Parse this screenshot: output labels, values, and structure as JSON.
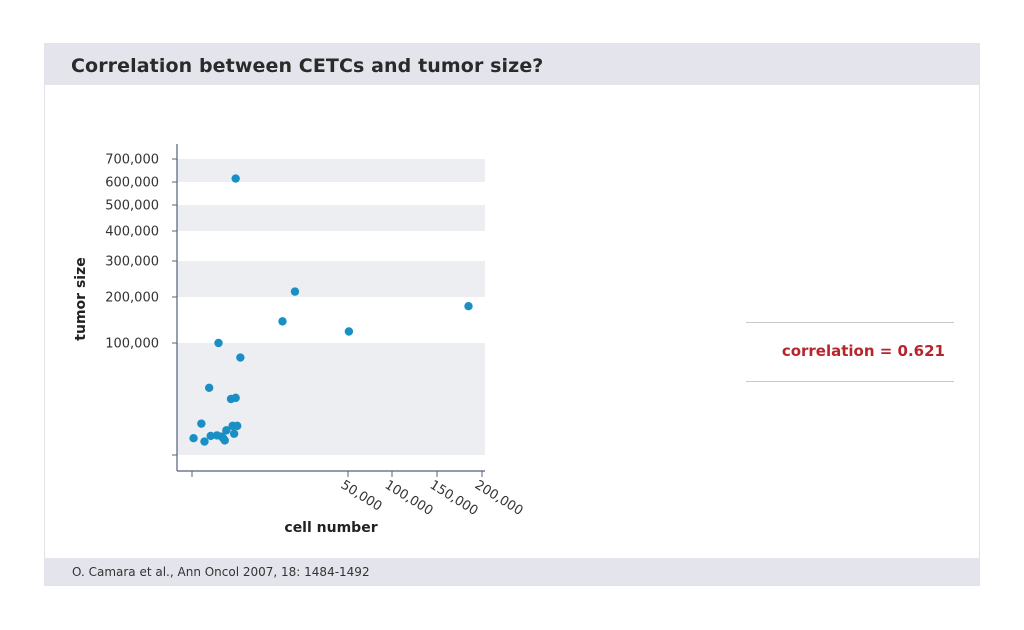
{
  "header": {
    "title": "Correlation between CETCs and tumor size?"
  },
  "footer": {
    "citation": "O. Camara et al., Ann Oncol 2007, 18: 1484-1492"
  },
  "annotation": {
    "correlation": "correlation = 0.621"
  },
  "colors": {
    "point": "#1a8fc4",
    "band": "#edeef2",
    "axis": "#55607a",
    "accent": "#b5262c",
    "panel": "#e4e5ec"
  },
  "chart_data": {
    "type": "scatter",
    "title": "",
    "xlabel": "cell number",
    "ylabel": "tumor size",
    "x_ticks": [
      {
        "value": 0,
        "label": ""
      },
      {
        "value": 50000,
        "label": "50,000"
      },
      {
        "value": 100000,
        "label": "100,000"
      },
      {
        "value": 150000,
        "label": "150,000"
      },
      {
        "value": 200000,
        "label": "200,000"
      }
    ],
    "y_ticks": [
      {
        "value": 0,
        "label": ""
      },
      {
        "value": 100000,
        "label": "100,000"
      },
      {
        "value": 200000,
        "label": "200,000"
      },
      {
        "value": 300000,
        "label": "300,000"
      },
      {
        "value": 400000,
        "label": "400,000"
      },
      {
        "value": 500000,
        "label": "500,000"
      },
      {
        "value": 600000,
        "label": "600,000"
      },
      {
        "value": 700000,
        "label": "700,000"
      }
    ],
    "grid": "alternating horizontal bands",
    "points": [
      {
        "x": 500,
        "y": 15000
      },
      {
        "x": 3000,
        "y": 28000
      },
      {
        "x": 4000,
        "y": 12000
      },
      {
        "x": 5500,
        "y": 60000
      },
      {
        "x": 6000,
        "y": 17000
      },
      {
        "x": 8000,
        "y": 17500
      },
      {
        "x": 8500,
        "y": 100000
      },
      {
        "x": 9500,
        "y": 16500
      },
      {
        "x": 10000,
        "y": 15000
      },
      {
        "x": 10500,
        "y": 13000
      },
      {
        "x": 11000,
        "y": 22000
      },
      {
        "x": 12500,
        "y": 50000
      },
      {
        "x": 13000,
        "y": 26000
      },
      {
        "x": 13500,
        "y": 19000
      },
      {
        "x": 14000,
        "y": 51000
      },
      {
        "x": 14000,
        "y": 615000
      },
      {
        "x": 15500,
        "y": 87000
      },
      {
        "x": 14500,
        "y": 26000
      },
      {
        "x": 29000,
        "y": 147000
      },
      {
        "x": 33000,
        "y": 215000
      },
      {
        "x": 51000,
        "y": 125000
      },
      {
        "x": 185000,
        "y": 180000
      }
    ]
  }
}
